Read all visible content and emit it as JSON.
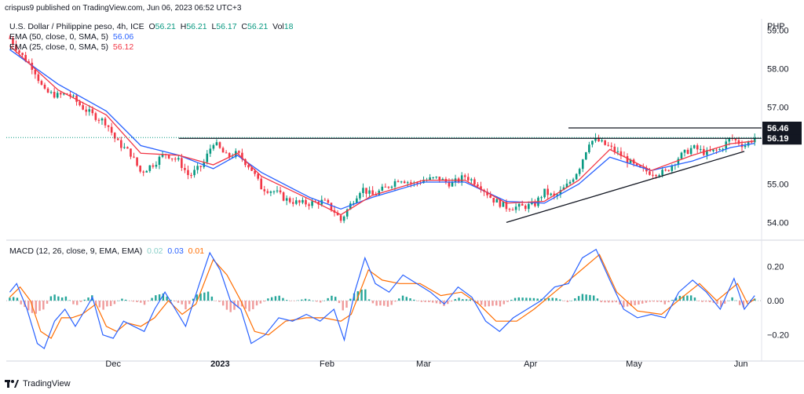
{
  "publisher": "crispus9 published on TradingView.com, Jun 06, 2023 06:52 UTC+3",
  "ohlc": {
    "symbol": "U.S. Dollar / Philippine peso, 4h, ICE",
    "o_label": "O",
    "o": "56.21",
    "h_label": "H",
    "h": "56.21",
    "l_label": "L",
    "l": "56.17",
    "c_label": "C",
    "c": "56.21",
    "vol_label": "Vol",
    "vol": "18"
  },
  "ema50": {
    "label": "EMA (50, close, 0, SMA, 5)",
    "value": "56.06",
    "color": "#2962ff"
  },
  "ema25": {
    "label": "EMA (25, close, 0, SMA, 5)",
    "value": "56.12",
    "color": "#f23645"
  },
  "macd_legend": {
    "label": "MACD (12, 26, close, 9, EMA, EMA)",
    "hist": "0.02",
    "macd": "0.03",
    "signal": "0.01"
  },
  "currency": "PHP",
  "footer": "TradingView",
  "colors": {
    "up": "#089981",
    "down": "#f23645",
    "macd": "#2962ff",
    "signal": "#ff6d00",
    "hist_up": "#26a69a",
    "hist_down": "#ef9a9a"
  },
  "chart_data": [
    {
      "type": "candlestick",
      "series_name": "U.S. Dollar / Philippine peso, 4h, ICE",
      "ylim": [
        53.6,
        59.3
      ],
      "y_ticks": [
        {
          "value": 59.0,
          "label": "59.00"
        },
        {
          "value": 58.0,
          "label": "58.00"
        },
        {
          "value": 57.0,
          "label": "57.00"
        },
        {
          "value": 55.0,
          "label": "55.00"
        },
        {
          "value": 54.0,
          "label": "54.00"
        }
      ],
      "x_ticks": [
        "Dec",
        "2023",
        "Feb",
        "Mar",
        "Apr",
        "May",
        "Jun"
      ],
      "close_path": [
        {
          "date": "2022-11-01",
          "value": 58.8
        },
        {
          "date": "2022-11-04",
          "value": 58.4
        },
        {
          "date": "2022-11-08",
          "value": 58.0
        },
        {
          "date": "2022-11-11",
          "value": 57.4
        },
        {
          "date": "2022-11-15",
          "value": 57.3
        },
        {
          "date": "2022-11-18",
          "value": 57.35
        },
        {
          "date": "2022-11-22",
          "value": 57.0
        },
        {
          "date": "2022-11-25",
          "value": 56.8
        },
        {
          "date": "2022-11-29",
          "value": 56.6
        },
        {
          "date": "2022-12-02",
          "value": 56.1
        },
        {
          "date": "2022-12-06",
          "value": 55.8
        },
        {
          "date": "2022-12-09",
          "value": 55.3
        },
        {
          "date": "2022-12-13",
          "value": 55.55
        },
        {
          "date": "2022-12-16",
          "value": 55.8
        },
        {
          "date": "2022-12-20",
          "value": 55.6
        },
        {
          "date": "2022-12-23",
          "value": 55.2
        },
        {
          "date": "2022-12-27",
          "value": 55.5
        },
        {
          "date": "2022-12-30",
          "value": 56.1
        },
        {
          "date": "2023-01-03",
          "value": 55.7
        },
        {
          "date": "2023-01-06",
          "value": 55.8
        },
        {
          "date": "2023-01-10",
          "value": 55.4
        },
        {
          "date": "2023-01-13",
          "value": 54.9
        },
        {
          "date": "2023-01-17",
          "value": 54.8
        },
        {
          "date": "2023-01-20",
          "value": 54.6
        },
        {
          "date": "2023-01-24",
          "value": 54.5
        },
        {
          "date": "2023-01-27",
          "value": 54.5
        },
        {
          "date": "2023-01-31",
          "value": 54.55
        },
        {
          "date": "2023-02-03",
          "value": 54.3
        },
        {
          "date": "2023-02-05",
          "value": 54.05
        },
        {
          "date": "2023-02-08",
          "value": 54.5
        },
        {
          "date": "2023-02-11",
          "value": 54.9
        },
        {
          "date": "2023-02-14",
          "value": 54.7
        },
        {
          "date": "2023-02-18",
          "value": 54.9
        },
        {
          "date": "2023-02-22",
          "value": 55.15
        },
        {
          "date": "2023-02-26",
          "value": 55.0
        },
        {
          "date": "2023-03-01",
          "value": 55.1
        },
        {
          "date": "2023-03-05",
          "value": 55.15
        },
        {
          "date": "2023-03-09",
          "value": 55.0
        },
        {
          "date": "2023-03-13",
          "value": 55.2
        },
        {
          "date": "2023-03-17",
          "value": 55.0
        },
        {
          "date": "2023-03-21",
          "value": 54.6
        },
        {
          "date": "2023-03-25",
          "value": 54.4
        },
        {
          "date": "2023-03-29",
          "value": 54.4
        },
        {
          "date": "2023-04-02",
          "value": 54.45
        },
        {
          "date": "2023-04-05",
          "value": 54.8
        },
        {
          "date": "2023-04-08",
          "value": 54.65
        },
        {
          "date": "2023-04-12",
          "value": 55.0
        },
        {
          "date": "2023-04-15",
          "value": 55.4
        },
        {
          "date": "2023-04-18",
          "value": 56.1
        },
        {
          "date": "2023-04-20",
          "value": 56.15
        },
        {
          "date": "2023-04-24",
          "value": 55.95
        },
        {
          "date": "2023-04-28",
          "value": 55.7
        },
        {
          "date": "2023-05-02",
          "value": 55.4
        },
        {
          "date": "2023-05-06",
          "value": 55.3
        },
        {
          "date": "2023-05-10",
          "value": 55.3
        },
        {
          "date": "2023-05-14",
          "value": 55.7
        },
        {
          "date": "2023-05-18",
          "value": 55.95
        },
        {
          "date": "2023-05-22",
          "value": 55.8
        },
        {
          "date": "2023-05-26",
          "value": 55.9
        },
        {
          "date": "2023-05-29",
          "value": 56.2
        },
        {
          "date": "2023-06-02",
          "value": 56.0
        },
        {
          "date": "2023-06-05",
          "value": 56.21
        }
      ],
      "ema50_path": [
        {
          "date": "2022-11-01",
          "value": 58.5
        },
        {
          "date": "2022-11-15",
          "value": 57.6
        },
        {
          "date": "2022-11-29",
          "value": 56.9
        },
        {
          "date": "2022-12-09",
          "value": 56.0
        },
        {
          "date": "2022-12-20",
          "value": 55.75
        },
        {
          "date": "2022-12-30",
          "value": 55.4
        },
        {
          "date": "2023-01-06",
          "value": 55.75
        },
        {
          "date": "2023-01-13",
          "value": 55.3
        },
        {
          "date": "2023-01-27",
          "value": 54.65
        },
        {
          "date": "2023-02-05",
          "value": 54.35
        },
        {
          "date": "2023-02-14",
          "value": 54.65
        },
        {
          "date": "2023-03-01",
          "value": 55.05
        },
        {
          "date": "2023-03-13",
          "value": 55.05
        },
        {
          "date": "2023-03-25",
          "value": 54.55
        },
        {
          "date": "2023-04-05",
          "value": 54.5
        },
        {
          "date": "2023-04-15",
          "value": 55.0
        },
        {
          "date": "2023-04-24",
          "value": 55.7
        },
        {
          "date": "2023-05-06",
          "value": 55.35
        },
        {
          "date": "2023-05-18",
          "value": 55.6
        },
        {
          "date": "2023-05-29",
          "value": 55.95
        },
        {
          "date": "2023-06-05",
          "value": 56.06
        }
      ],
      "ema25_path": [
        {
          "date": "2022-11-01",
          "value": 58.6
        },
        {
          "date": "2022-11-15",
          "value": 57.45
        },
        {
          "date": "2022-11-29",
          "value": 56.8
        },
        {
          "date": "2022-12-09",
          "value": 55.8
        },
        {
          "date": "2022-12-20",
          "value": 55.75
        },
        {
          "date": "2022-12-30",
          "value": 55.5
        },
        {
          "date": "2023-01-06",
          "value": 55.8
        },
        {
          "date": "2023-01-13",
          "value": 55.2
        },
        {
          "date": "2023-01-27",
          "value": 54.6
        },
        {
          "date": "2023-02-05",
          "value": 54.2
        },
        {
          "date": "2023-02-14",
          "value": 54.7
        },
        {
          "date": "2023-03-01",
          "value": 55.1
        },
        {
          "date": "2023-03-13",
          "value": 55.1
        },
        {
          "date": "2023-03-25",
          "value": 54.5
        },
        {
          "date": "2023-04-05",
          "value": 54.55
        },
        {
          "date": "2023-04-15",
          "value": 55.1
        },
        {
          "date": "2023-04-24",
          "value": 55.9
        },
        {
          "date": "2023-05-06",
          "value": 55.35
        },
        {
          "date": "2023-05-18",
          "value": 55.75
        },
        {
          "date": "2023-05-29",
          "value": 56.05
        },
        {
          "date": "2023-06-05",
          "value": 56.12
        }
      ],
      "annotations": [
        {
          "kind": "horizontal_line",
          "start": "2022-12-20",
          "end": "2023-06-06",
          "value": 56.19,
          "label": "56.19"
        },
        {
          "kind": "horizontal_line",
          "start": "2023-04-12",
          "end": "2023-06-06",
          "value": 56.46,
          "label": "56.46"
        },
        {
          "kind": "trend_line",
          "points": [
            {
              "date": "2023-03-25",
              "value": 54.0
            },
            {
              "date": "2023-06-02",
              "value": 55.85
            }
          ]
        }
      ],
      "last_price": 56.21
    },
    {
      "type": "macd",
      "ylim": [
        -0.33,
        0.34
      ],
      "y_ticks": [
        {
          "value": 0.2,
          "label": "0.20"
        },
        {
          "value": 0.0,
          "label": "0.00"
        },
        {
          "value": -0.2,
          "label": "−0.20"
        }
      ],
      "macd": [
        {
          "date": "2022-11-01",
          "value": 0.05
        },
        {
          "date": "2022-11-03",
          "value": 0.1
        },
        {
          "date": "2022-11-06",
          "value": -0.05
        },
        {
          "date": "2022-11-09",
          "value": -0.25
        },
        {
          "date": "2022-11-11",
          "value": -0.28
        },
        {
          "date": "2022-11-14",
          "value": -0.12
        },
        {
          "date": "2022-11-17",
          "value": -0.05
        },
        {
          "date": "2022-11-20",
          "value": -0.15
        },
        {
          "date": "2022-11-23",
          "value": -0.05
        },
        {
          "date": "2022-11-25",
          "value": 0.02
        },
        {
          "date": "2022-11-28",
          "value": -0.2
        },
        {
          "date": "2022-12-01",
          "value": -0.22
        },
        {
          "date": "2022-12-04",
          "value": -0.12
        },
        {
          "date": "2022-12-07",
          "value": -0.15
        },
        {
          "date": "2022-12-10",
          "value": -0.18
        },
        {
          "date": "2022-12-13",
          "value": -0.05
        },
        {
          "date": "2022-12-16",
          "value": 0.05
        },
        {
          "date": "2022-12-19",
          "value": -0.05
        },
        {
          "date": "2022-12-22",
          "value": -0.15
        },
        {
          "date": "2022-12-26",
          "value": 0.1
        },
        {
          "date": "2022-12-29",
          "value": 0.28
        },
        {
          "date": "2023-01-01",
          "value": 0.18
        },
        {
          "date": "2023-01-04",
          "value": 0.0
        },
        {
          "date": "2023-01-07",
          "value": -0.05
        },
        {
          "date": "2023-01-10",
          "value": -0.25
        },
        {
          "date": "2023-01-14",
          "value": -0.2
        },
        {
          "date": "2023-01-18",
          "value": -0.1
        },
        {
          "date": "2023-01-22",
          "value": -0.12
        },
        {
          "date": "2023-01-26",
          "value": -0.08
        },
        {
          "date": "2023-01-30",
          "value": -0.12
        },
        {
          "date": "2023-02-03",
          "value": -0.05
        },
        {
          "date": "2023-02-06",
          "value": -0.23
        },
        {
          "date": "2023-02-09",
          "value": 0.05
        },
        {
          "date": "2023-02-12",
          "value": 0.25
        },
        {
          "date": "2023-02-15",
          "value": 0.1
        },
        {
          "date": "2023-02-19",
          "value": 0.05
        },
        {
          "date": "2023-02-23",
          "value": 0.15
        },
        {
          "date": "2023-02-27",
          "value": 0.1
        },
        {
          "date": "2023-03-03",
          "value": 0.05
        },
        {
          "date": "2023-03-07",
          "value": -0.02
        },
        {
          "date": "2023-03-11",
          "value": 0.08
        },
        {
          "date": "2023-03-15",
          "value": 0.02
        },
        {
          "date": "2023-03-19",
          "value": -0.12
        },
        {
          "date": "2023-03-23",
          "value": -0.18
        },
        {
          "date": "2023-03-27",
          "value": -0.1
        },
        {
          "date": "2023-03-31",
          "value": -0.05
        },
        {
          "date": "2023-04-04",
          "value": 0.0
        },
        {
          "date": "2023-04-08",
          "value": 0.08
        },
        {
          "date": "2023-04-12",
          "value": 0.1
        },
        {
          "date": "2023-04-16",
          "value": 0.25
        },
        {
          "date": "2023-04-20",
          "value": 0.3
        },
        {
          "date": "2023-04-24",
          "value": 0.12
        },
        {
          "date": "2023-04-28",
          "value": -0.05
        },
        {
          "date": "2023-05-02",
          "value": -0.1
        },
        {
          "date": "2023-05-06",
          "value": -0.08
        },
        {
          "date": "2023-05-10",
          "value": -0.1
        },
        {
          "date": "2023-05-14",
          "value": 0.05
        },
        {
          "date": "2023-05-18",
          "value": 0.12
        },
        {
          "date": "2023-05-22",
          "value": 0.05
        },
        {
          "date": "2023-05-26",
          "value": -0.05
        },
        {
          "date": "2023-05-30",
          "value": 0.13
        },
        {
          "date": "2023-06-02",
          "value": -0.05
        },
        {
          "date": "2023-06-05",
          "value": 0.03
        }
      ],
      "signal": [
        {
          "date": "2022-11-01",
          "value": 0.02
        },
        {
          "date": "2022-11-04",
          "value": 0.08
        },
        {
          "date": "2022-11-07",
          "value": 0.0
        },
        {
          "date": "2022-11-10",
          "value": -0.18
        },
        {
          "date": "2022-11-13",
          "value": -0.22
        },
        {
          "date": "2022-11-16",
          "value": -0.1
        },
        {
          "date": "2022-11-19",
          "value": -0.1
        },
        {
          "date": "2022-11-22",
          "value": -0.08
        },
        {
          "date": "2022-11-26",
          "value": -0.02
        },
        {
          "date": "2022-11-29",
          "value": -0.15
        },
        {
          "date": "2022-12-02",
          "value": -0.18
        },
        {
          "date": "2022-12-05",
          "value": -0.13
        },
        {
          "date": "2022-12-09",
          "value": -0.15
        },
        {
          "date": "2022-12-13",
          "value": -0.1
        },
        {
          "date": "2022-12-17",
          "value": 0.0
        },
        {
          "date": "2022-12-21",
          "value": -0.08
        },
        {
          "date": "2022-12-25",
          "value": -0.02
        },
        {
          "date": "2022-12-30",
          "value": 0.24
        },
        {
          "date": "2023-01-03",
          "value": 0.15
        },
        {
          "date": "2023-01-07",
          "value": 0.0
        },
        {
          "date": "2023-01-11",
          "value": -0.18
        },
        {
          "date": "2023-01-15",
          "value": -0.2
        },
        {
          "date": "2023-01-20",
          "value": -0.12
        },
        {
          "date": "2023-01-26",
          "value": -0.1
        },
        {
          "date": "2023-01-31",
          "value": -0.1
        },
        {
          "date": "2023-02-05",
          "value": -0.12
        },
        {
          "date": "2023-02-08",
          "value": -0.08
        },
        {
          "date": "2023-02-13",
          "value": 0.18
        },
        {
          "date": "2023-02-17",
          "value": 0.12
        },
        {
          "date": "2023-02-22",
          "value": 0.1
        },
        {
          "date": "2023-02-28",
          "value": 0.1
        },
        {
          "date": "2023-03-06",
          "value": 0.03
        },
        {
          "date": "2023-03-12",
          "value": 0.05
        },
        {
          "date": "2023-03-17",
          "value": -0.02
        },
        {
          "date": "2023-03-22",
          "value": -0.12
        },
        {
          "date": "2023-03-28",
          "value": -0.12
        },
        {
          "date": "2023-04-02",
          "value": -0.05
        },
        {
          "date": "2023-04-08",
          "value": 0.05
        },
        {
          "date": "2023-04-14",
          "value": 0.15
        },
        {
          "date": "2023-04-21",
          "value": 0.27
        },
        {
          "date": "2023-04-26",
          "value": 0.05
        },
        {
          "date": "2023-05-02",
          "value": -0.06
        },
        {
          "date": "2023-05-09",
          "value": -0.08
        },
        {
          "date": "2023-05-15",
          "value": 0.02
        },
        {
          "date": "2023-05-20",
          "value": 0.1
        },
        {
          "date": "2023-05-25",
          "value": 0.0
        },
        {
          "date": "2023-05-31",
          "value": 0.1
        },
        {
          "date": "2023-06-03",
          "value": -0.02
        },
        {
          "date": "2023-06-05",
          "value": 0.01
        }
      ]
    }
  ]
}
